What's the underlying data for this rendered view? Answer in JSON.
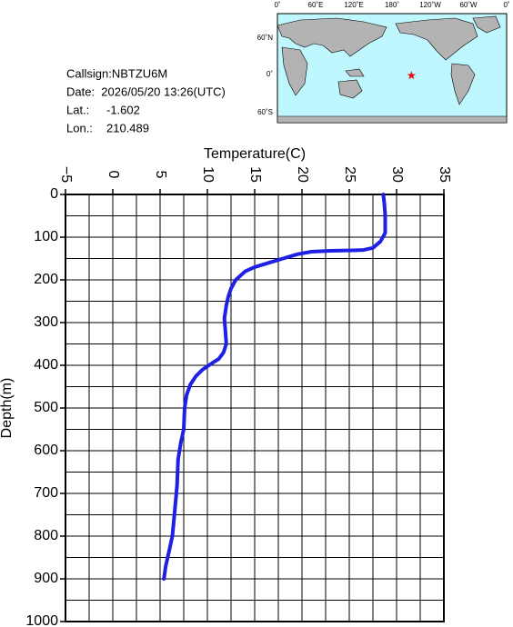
{
  "chart_data": {
    "type": "line",
    "x_label": "Temperature(C)",
    "y_label": "Depth(m)",
    "color": "#1f1fe6",
    "x": [
      28.6,
      28.7,
      28.8,
      28.8,
      28.3,
      27.5,
      26.5,
      25,
      23,
      21,
      19.5,
      18,
      16.5,
      15,
      14,
      13.5,
      13,
      12.5,
      12.2,
      12,
      11.8,
      11.9,
      12,
      11.7,
      11.2,
      10.5,
      9.5,
      8.8,
      8.2,
      7.8,
      7.6,
      7.5,
      7.2,
      6.9,
      6.8,
      6.6,
      6.3,
      5.9,
      5.6,
      5.4
    ],
    "y": [
      0,
      20,
      50,
      90,
      110,
      125,
      130,
      131,
      132,
      134,
      140,
      150,
      160,
      170,
      180,
      190,
      200,
      220,
      240,
      260,
      290,
      320,
      350,
      370,
      385,
      395,
      410,
      425,
      445,
      470,
      500,
      550,
      580,
      620,
      680,
      730,
      800,
      840,
      870,
      900
    ],
    "xlim": [
      -5,
      35
    ],
    "xticks": [
      {
        "value": -5,
        "label": "−5"
      },
      0,
      5,
      10,
      15,
      20,
      25,
      30,
      35
    ],
    "ylim": [
      1000,
      0
    ],
    "yticks": [
      0,
      100,
      200,
      300,
      400,
      500,
      600,
      700,
      800,
      900,
      1000
    ],
    "xgrid": [
      -5,
      -2.5,
      0,
      2.5,
      5,
      7.5,
      10,
      12.5,
      15,
      17.5,
      20,
      22.5,
      25,
      27.5,
      30,
      32.5,
      35
    ],
    "ygrid": [
      0,
      50,
      100,
      150,
      200,
      250,
      300,
      350,
      400,
      450,
      500,
      550,
      600,
      650,
      700,
      750,
      800,
      850,
      900,
      950,
      1000
    ],
    "grid": true
  },
  "info": {
    "callsign": "Callsign:NBTZU6M",
    "date": "Date:  2026/05/20 13:26(UTC)",
    "lat_label": "Lat.:",
    "lat": -1.602,
    "lon_label": "Lon.:",
    "lon": 210.489
  },
  "map": {
    "lon_labels": [
      "0˚",
      "60˚E",
      "120˚E",
      "180˚",
      "120˚W",
      "60˚W",
      "0˚"
    ],
    "lat_labels": [
      "60˚N",
      "0˚",
      "60˚S"
    ]
  }
}
